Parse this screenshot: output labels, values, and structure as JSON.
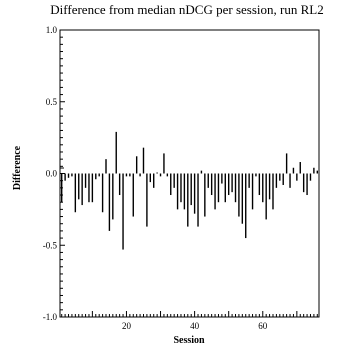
{
  "chart_data": {
    "type": "bar",
    "title": "Difference from median nDCG per session, run RL2",
    "xlabel": "Session",
    "ylabel": "Difference",
    "xlim": [
      1,
      76
    ],
    "ylim": [
      -1.0,
      1.0
    ],
    "x_ticks": [
      20,
      40,
      60
    ],
    "y_ticks": [
      "-1.0",
      "-0.5",
      "0.0",
      "0.5",
      "1.0"
    ],
    "x_ticks_minor_step": 1,
    "y_ticks_minor_step": 0.05,
    "grid": false,
    "series": [
      {
        "x": [
          1,
          2,
          3,
          4,
          5,
          6,
          7,
          8,
          9,
          10,
          11,
          12,
          13,
          14,
          15,
          16,
          17,
          18,
          19,
          20,
          21,
          22,
          23,
          24,
          25,
          26,
          27,
          28,
          29,
          30,
          31,
          32,
          33,
          34,
          35,
          36,
          37,
          38,
          39,
          40,
          41,
          42,
          43,
          44,
          45,
          46,
          47,
          48,
          49,
          50,
          51,
          52,
          53,
          54,
          55,
          56,
          57,
          58,
          59,
          60,
          61,
          62,
          63,
          64,
          65,
          66,
          67,
          68,
          69,
          70,
          71,
          72,
          73,
          74,
          75,
          76
        ],
        "values": [
          -0.2,
          -0.05,
          -0.03,
          -0.02,
          -0.27,
          -0.18,
          -0.22,
          -0.1,
          -0.2,
          -0.2,
          -0.04,
          -0.02,
          -0.27,
          0.1,
          -0.4,
          -0.32,
          0.29,
          -0.15,
          -0.53,
          -0.02,
          -0.02,
          -0.3,
          0.12,
          -0.02,
          0.18,
          -0.37,
          -0.06,
          -0.1,
          0.0,
          -0.02,
          0.14,
          -0.02,
          -0.15,
          -0.1,
          -0.25,
          -0.2,
          -0.25,
          -0.37,
          -0.22,
          -0.28,
          -0.37,
          0.02,
          -0.3,
          -0.1,
          -0.15,
          -0.25,
          -0.2,
          -0.07,
          -0.2,
          -0.15,
          -0.13,
          -0.2,
          -0.3,
          -0.35,
          -0.45,
          -0.1,
          -0.25,
          -0.02,
          -0.15,
          -0.2,
          -0.32,
          -0.18,
          -0.25,
          -0.1,
          -0.05,
          -0.08,
          0.14,
          -0.1,
          0.04,
          -0.05,
          0.08,
          -0.13,
          -0.15,
          -0.05,
          0.04,
          0.02
        ]
      }
    ]
  }
}
